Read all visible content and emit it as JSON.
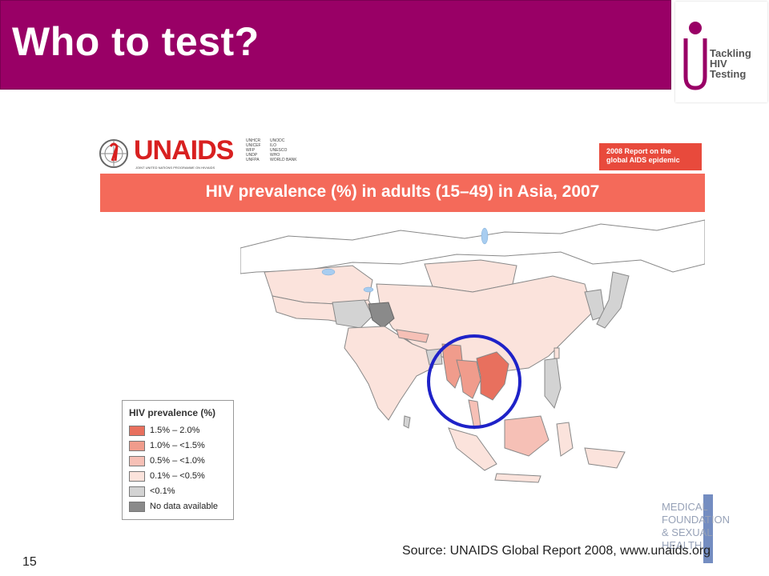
{
  "slide": {
    "title": "Who to test?",
    "page_number": "15",
    "source": "Source: UNAIDS Global Report 2008, www.unaids.org"
  },
  "logo": {
    "lines": [
      "Tackling",
      "HIV",
      "Testing"
    ],
    "accent_color": "#990066"
  },
  "unaids": {
    "wordmark": "UNAIDS",
    "subtitle": "JOINT UNITED NATIONS PROGRAMME ON HIV/AIDS",
    "cosponsors_col1": [
      "UNHCR",
      "UNICEF",
      "WFP",
      "UNDP",
      "UNFPA"
    ],
    "cosponsors_col2": [
      "UNODC",
      "ILO",
      "UNESCO",
      "WHO",
      "WORLD BANK"
    ]
  },
  "report_badge": {
    "line1": "2008 Report on the",
    "line2": "global AIDS epidemic"
  },
  "map": {
    "title": "HIV prevalence (%) in adults (15–49) in Asia, 2007",
    "highlight_color": "#1e22c8",
    "legend": {
      "title": "HIV prevalence (%)",
      "items": [
        {
          "label": "1.5% – 2.0%",
          "color": "#e8705e"
        },
        {
          "label": "1.0% – <1.5%",
          "color": "#f09c8c"
        },
        {
          "label": "0.5% – <1.0%",
          "color": "#f6c0b6"
        },
        {
          "label": "0.1% – <0.5%",
          "color": "#fbe3dc"
        },
        {
          "label": "<0.1%",
          "color": "#d3d3d3"
        },
        {
          "label": "No data available",
          "color": "#8a8a8a"
        }
      ]
    }
  },
  "mfsh_logo": {
    "lines": [
      "MEDICAL",
      "FOUNDATION",
      "& SEXUAL",
      "HEALTH"
    ]
  }
}
